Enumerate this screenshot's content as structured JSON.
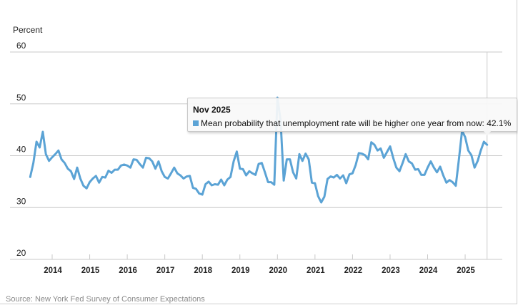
{
  "colors": {
    "series": "#5ba3d5",
    "grid": "#c8c8c8",
    "text": "#222222",
    "source": "#8a8a8a"
  },
  "chart_data": {
    "type": "line",
    "title": "",
    "ylabel": "Percent",
    "xlabel": "",
    "ylim": [
      20,
      60
    ],
    "yticks": [
      "20",
      "30",
      "40",
      "50",
      "60"
    ],
    "xticks": [
      "2014",
      "2015",
      "2016",
      "2017",
      "2018",
      "2019",
      "2020",
      "2021",
      "2022",
      "2023",
      "2024",
      "2025"
    ],
    "x_start": "Jun 2013",
    "x_end": "Nov 2025",
    "frequency": "monthly",
    "grid": true,
    "legend": "none",
    "series": [
      {
        "name": "Mean probability that unemployment rate will be higher one year from now",
        "values": [
          35.9,
          38.6,
          42.7,
          41.6,
          44.6,
          40.3,
          39.0,
          39.7,
          40.3,
          41.0,
          39.3,
          38.6,
          37.5,
          37.0,
          35.5,
          37.7,
          35.6,
          34.2,
          33.7,
          34.9,
          35.6,
          36.1,
          34.8,
          35.9,
          35.8,
          37.1,
          36.7,
          37.3,
          37.3,
          38.1,
          38.3,
          38.1,
          37.7,
          39.3,
          39.2,
          38.4,
          37.7,
          39.6,
          39.5,
          38.9,
          37.5,
          38.9,
          37.0,
          35.9,
          35.6,
          36.6,
          37.7,
          36.6,
          36.2,
          35.6,
          36.0,
          36.1,
          33.8,
          33.6,
          32.7,
          32.5,
          34.5,
          35.0,
          34.3,
          34.5,
          34.4,
          35.4,
          34.3,
          35.4,
          35.9,
          38.9,
          40.8,
          37.5,
          37.4,
          36.2,
          37.0,
          36.6,
          36.3,
          38.4,
          38.6,
          36.8,
          34.9,
          34.9,
          34.4,
          51.2,
          46.8,
          35.2,
          39.3,
          39.3,
          36.8,
          35.6,
          40.3,
          39.0,
          40.4,
          39.3,
          34.8,
          34.7,
          32.2,
          31.0,
          32.1,
          35.5,
          36.0,
          35.8,
          36.3,
          35.6,
          36.2,
          34.7,
          36.4,
          36.6,
          38.2,
          40.5,
          40.4,
          40.1,
          39.3,
          42.6,
          42.1,
          41.0,
          41.4,
          39.6,
          40.7,
          41.8,
          39.6,
          37.7,
          37.0,
          38.6,
          40.3,
          38.9,
          38.5,
          37.3,
          37.4,
          36.3,
          36.3,
          37.7,
          38.9,
          37.7,
          36.8,
          37.9,
          36.2,
          34.8,
          35.3,
          34.9,
          34.2,
          39.3,
          44.8,
          43.6,
          41.0,
          40.1,
          37.7,
          39.0,
          41.0,
          42.7,
          42.1
        ]
      }
    ],
    "annotations": {
      "hover_point": {
        "label": "Nov 2025",
        "value": 42.1
      }
    }
  },
  "tooltip": {
    "title": "Nov 2025",
    "series_label": "Mean probability that unemployment rate will be higher one year from now: 42.1%"
  },
  "source": "Source: New York Fed Survey of Consumer Expectations"
}
